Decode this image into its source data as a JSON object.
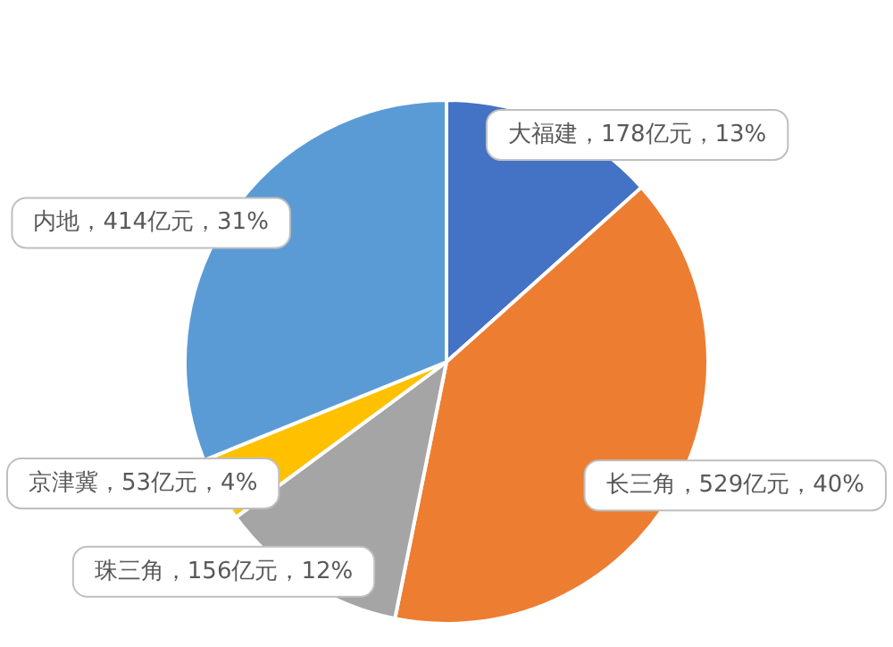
{
  "chart_data": {
    "type": "pie",
    "categories": [
      "大福建",
      "长三角",
      "珠三角",
      "京津冀",
      "内地"
    ],
    "values": [
      178,
      529,
      156,
      53,
      414
    ],
    "value_labels": [
      "178亿元，13%",
      "529亿元，40%",
      "156亿元，12%",
      "53亿元，4%",
      "414亿元，31%"
    ],
    "colors": [
      "#4472c4",
      "#ed7d31",
      "#a5a5a5",
      "#ffc000",
      "#5b9bd5"
    ],
    "legend": false
  }
}
